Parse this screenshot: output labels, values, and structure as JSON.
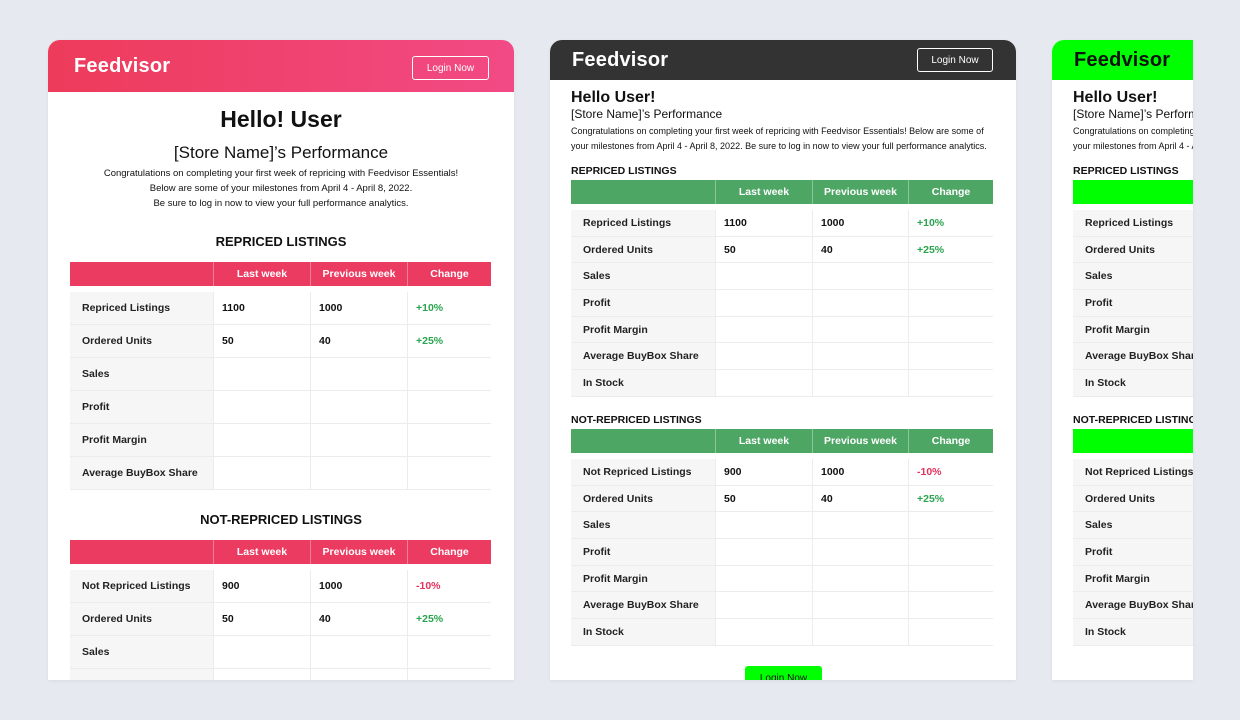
{
  "brand": "Feedvisor",
  "login_label": "Login Now",
  "greeting_1": "Hello! User",
  "greeting_2": "Hello User!",
  "performance_title": "[Store Name]’s Performance",
  "intro_centered": [
    "Congratulations on completing your first week of repricing with Feedvisor Essentials!",
    "Below are some of your milestones from April 4 - April 8, 2022.",
    "Be sure to log in now to view your full performance analytics."
  ],
  "intro_left": [
    "Congratulations on completing your first week of repricing with Feedvisor Essentials! Below are some of",
    "your milestones from April 4 - April 8, 2022. Be sure to log in now to view your full performance analytics."
  ],
  "sections": {
    "repriced_centered": "REPRICED LISTINGS",
    "not_repriced_centered": "NOT-REPRICED LISTINGS",
    "repriced": "REPRICED LISTINGS",
    "not_repriced": "NOT-REPRICED LISTINGS"
  },
  "columns": [
    "",
    "Last week",
    "Previous week",
    "Change"
  ],
  "repriced_rows": [
    {
      "label": "Repriced Listings",
      "last": "1100",
      "prev": "1000",
      "change": "+10%"
    },
    {
      "label": "Ordered Units",
      "last": "50",
      "prev": "40",
      "change": "+25%"
    },
    {
      "label": "Sales",
      "last": "",
      "prev": "",
      "change": ""
    },
    {
      "label": "Profit",
      "last": "",
      "prev": "",
      "change": ""
    },
    {
      "label": "Profit Margin",
      "last": "",
      "prev": "",
      "change": ""
    },
    {
      "label": "Average BuyBox Share",
      "last": "",
      "prev": "",
      "change": ""
    },
    {
      "label": "In Stock",
      "last": "",
      "prev": "",
      "change": ""
    }
  ],
  "not_repriced_rows": [
    {
      "label": "Not Repriced Listings",
      "last": "900",
      "prev": "1000",
      "change": "-10%"
    },
    {
      "label": "Ordered Units",
      "last": "50",
      "prev": "40",
      "change": "+25%"
    },
    {
      "label": "Sales",
      "last": "",
      "prev": "",
      "change": ""
    },
    {
      "label": "Profit",
      "last": "",
      "prev": "",
      "change": ""
    },
    {
      "label": "Profit Margin",
      "last": "",
      "prev": "",
      "change": ""
    },
    {
      "label": "Average BuyBox Share",
      "last": "",
      "prev": "",
      "change": ""
    },
    {
      "label": "In Stock",
      "last": "",
      "prev": "",
      "change": ""
    }
  ],
  "colors": {
    "pink_header": "#ec3b61",
    "green_header": "#4ea665",
    "lime_header": "#00ff00",
    "dark_header": "#333333",
    "positive": "#2aa44f",
    "negative": "#e4325e"
  }
}
